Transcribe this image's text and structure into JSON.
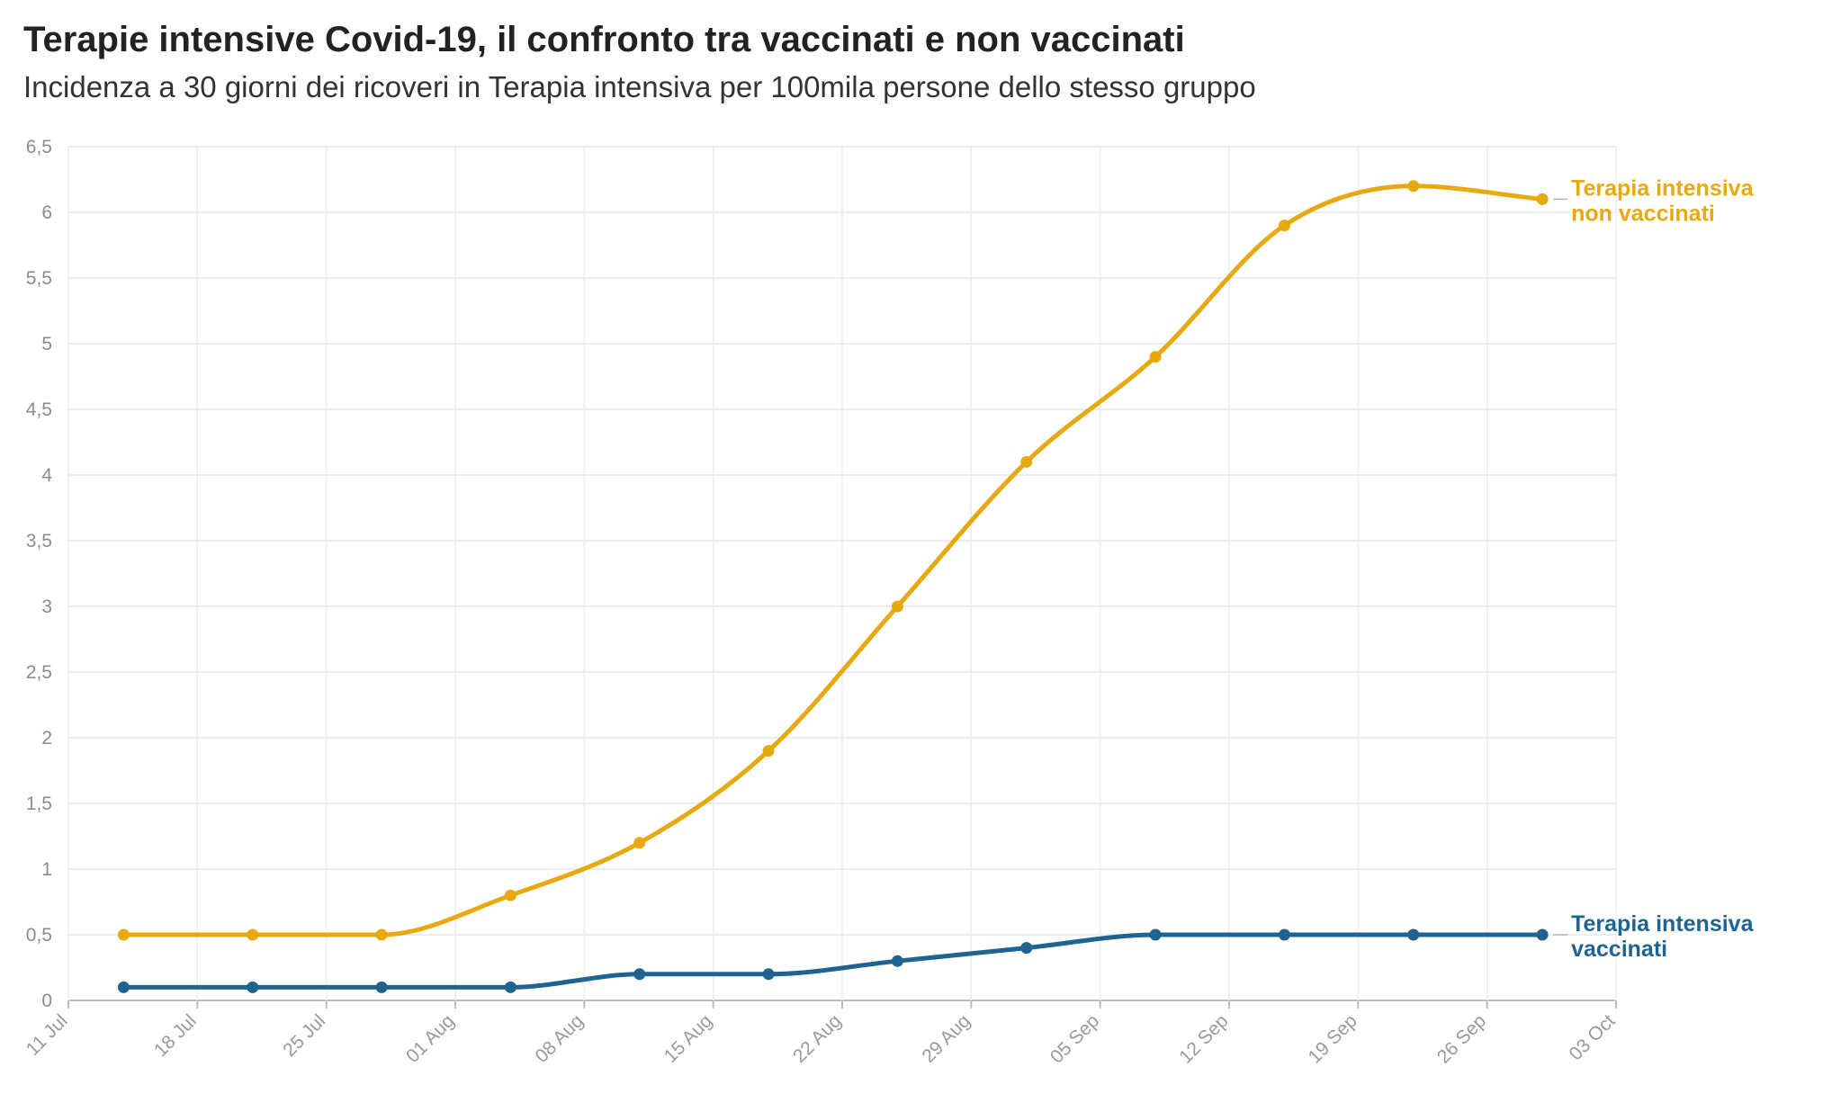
{
  "title": "Terapie intensive Covid-19, il confronto tra vaccinati e non vaccinati",
  "subtitle": "Incidenza a 30 giorni dei ricoveri in Terapia intensiva per 100mila persone dello stesso gruppo",
  "chart_data": {
    "type": "line",
    "x_ticks": [
      "11 Jul",
      "18 Jul",
      "25 Jul",
      "01 Aug",
      "08 Aug",
      "15 Aug",
      "22 Aug",
      "29 Aug",
      "05 Sep",
      "12 Sep",
      "19 Sep",
      "26 Sep",
      "03 Oct"
    ],
    "y_ticks": [
      "0",
      "0,5",
      "1",
      "1,5",
      "2",
      "2,5",
      "3",
      "3,5",
      "4",
      "4,5",
      "5",
      "5,5",
      "6",
      "6,5"
    ],
    "ylim": [
      0,
      6.5
    ],
    "x": [
      "14 Jul",
      "21 Jul",
      "28 Jul",
      "04 Aug",
      "11 Aug",
      "18 Aug",
      "25 Aug",
      "01 Sep",
      "08 Sep",
      "15 Sep",
      "22 Sep",
      "29 Sep"
    ],
    "grid": true,
    "legend": "labels at end of lines",
    "series": [
      {
        "name_lines": [
          "Terapia intensiva",
          "non vaccinati"
        ],
        "color": "#e8a90e",
        "values": [
          0.5,
          0.5,
          0.5,
          0.8,
          1.2,
          1.9,
          3.0,
          4.1,
          4.9,
          5.9,
          6.2,
          6.1
        ]
      },
      {
        "name_lines": [
          "Terapia intensiva",
          "vaccinati"
        ],
        "color": "#1f6391",
        "values": [
          0.1,
          0.1,
          0.1,
          0.1,
          0.2,
          0.2,
          0.3,
          0.4,
          0.5,
          0.5,
          0.5,
          0.5
        ]
      }
    ]
  }
}
